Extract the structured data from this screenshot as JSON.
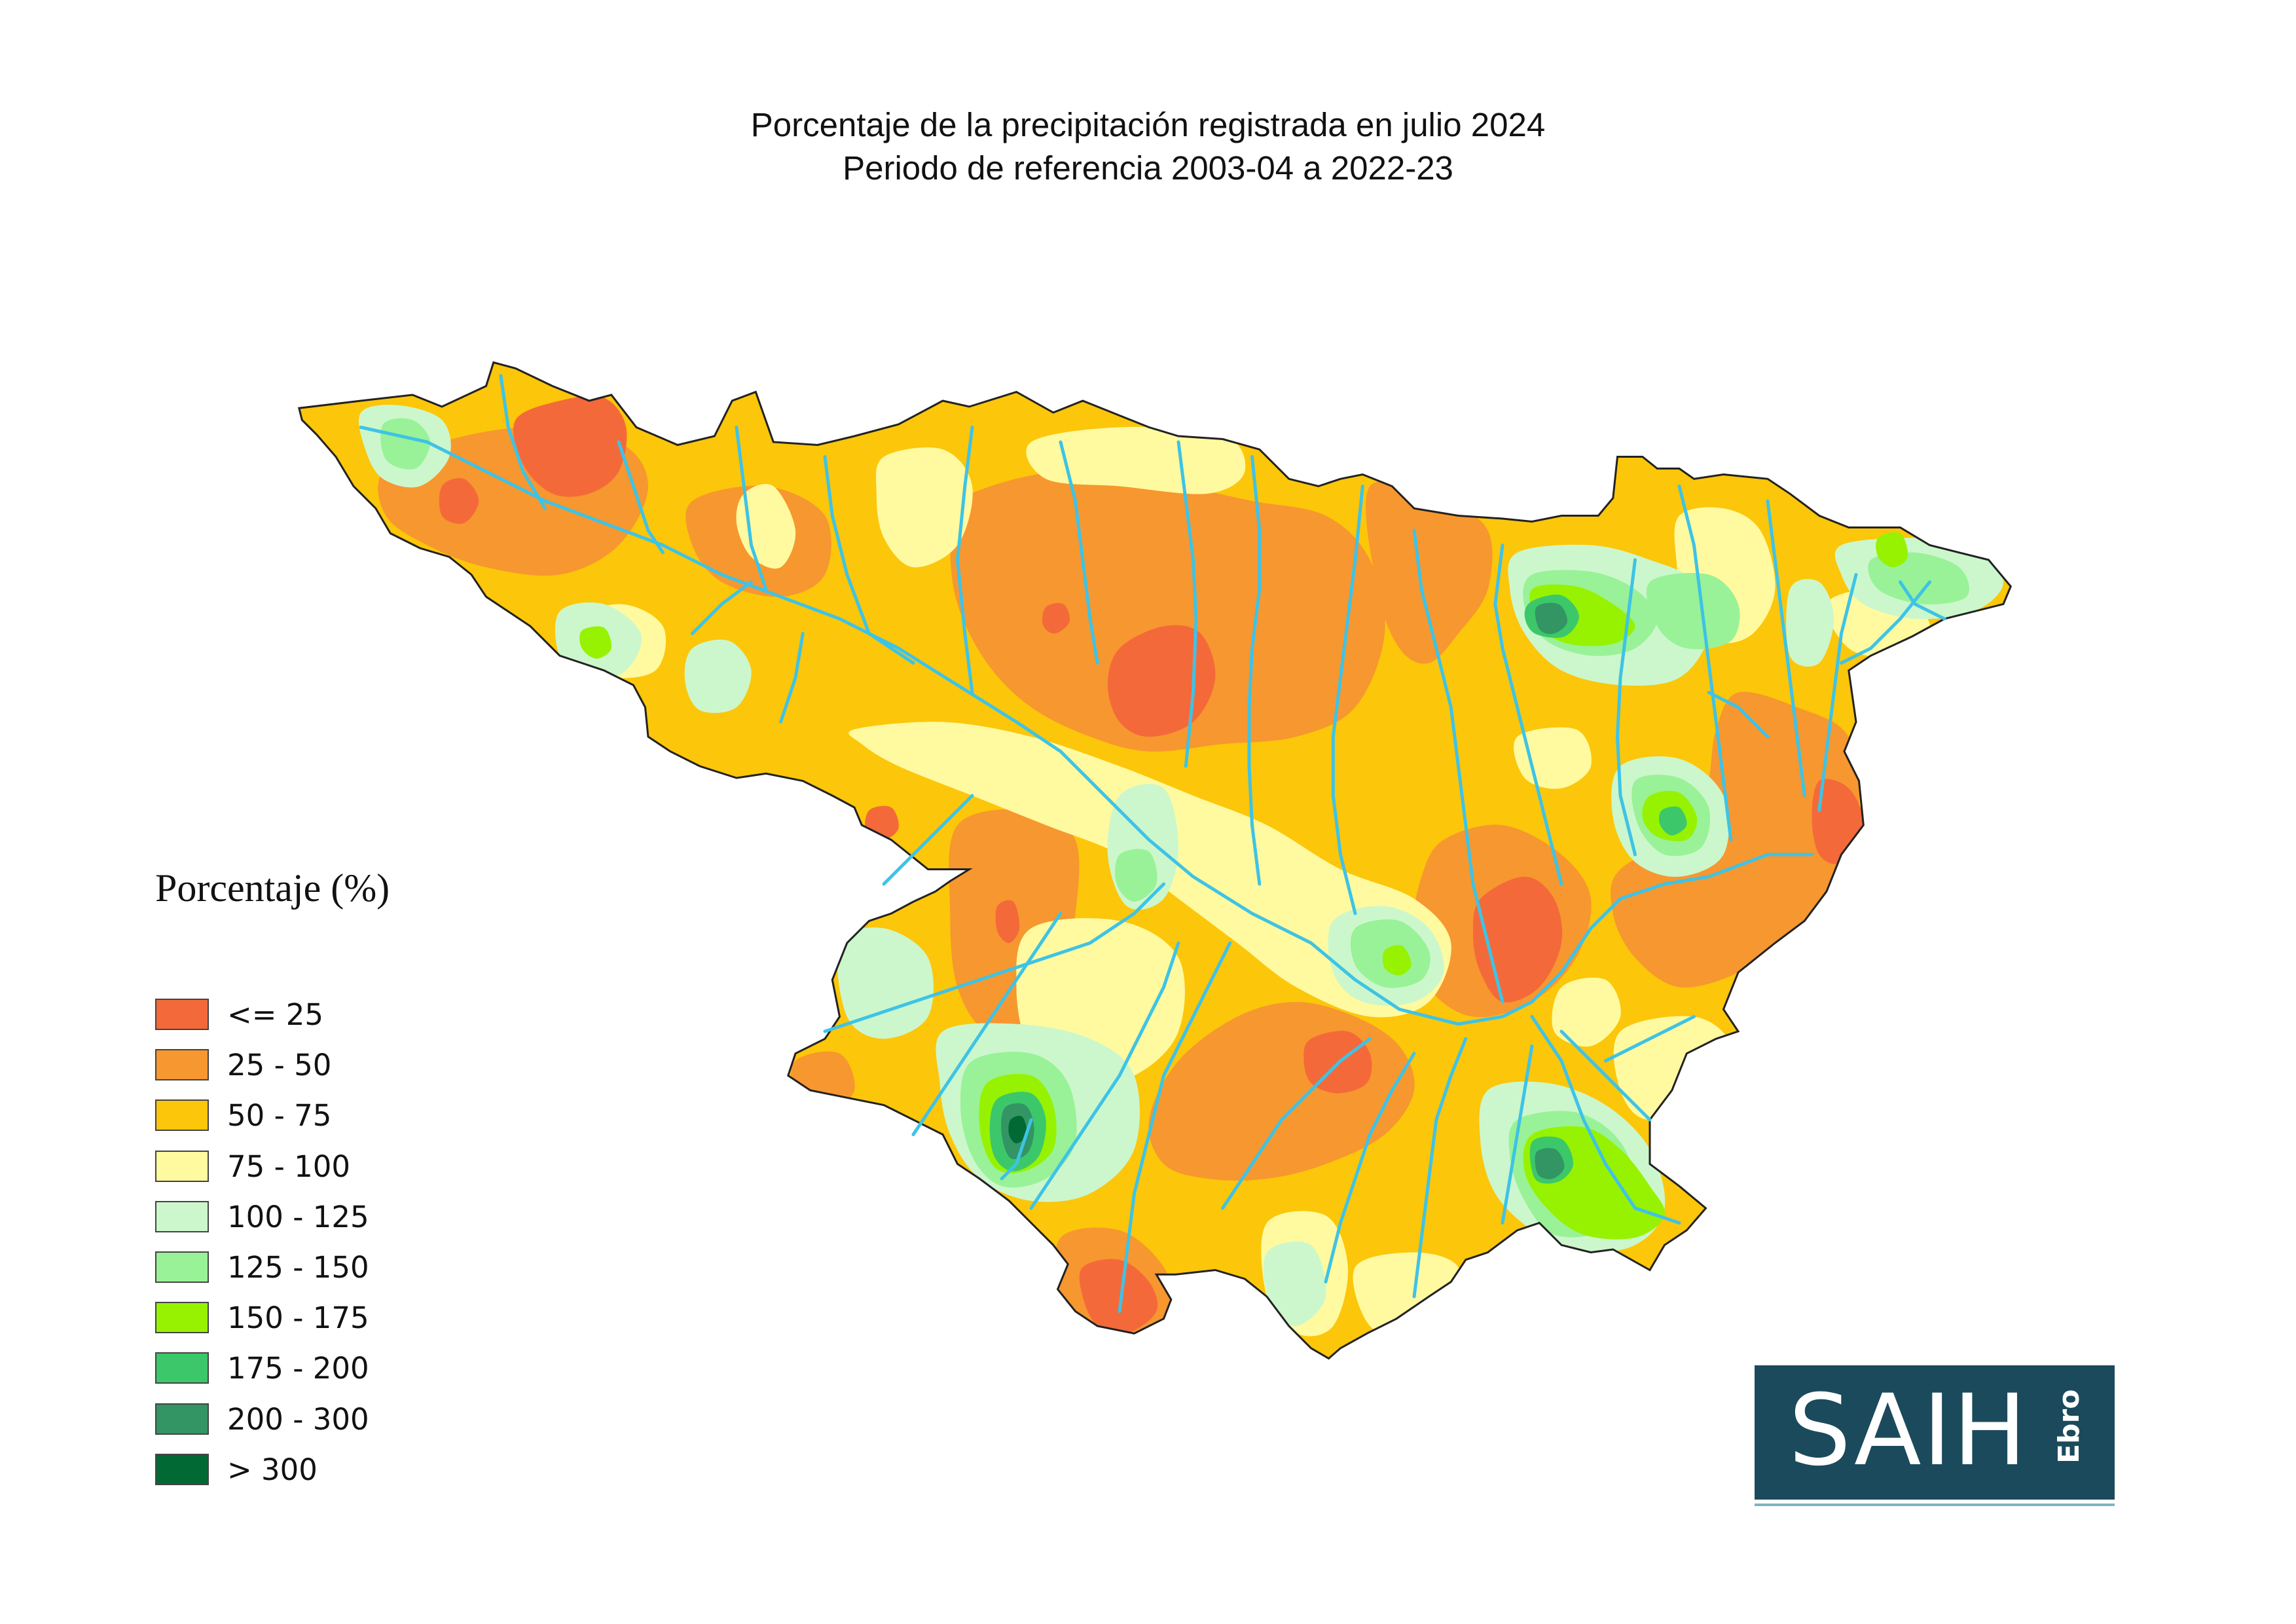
{
  "title": {
    "line1": "Porcentaje de la precipitación registrada en julio 2024",
    "line2": "Periodo de referencia 2003-04 a 2022-23"
  },
  "legend": {
    "title": "Porcentaje (%)",
    "items": [
      {
        "label": "<= 25",
        "color": "#f4693a"
      },
      {
        "label": "25 - 50",
        "color": "#f7972f"
      },
      {
        "label": "50 - 75",
        "color": "#fcc60a"
      },
      {
        "label": "75 - 100",
        "color": "#fffaa0"
      },
      {
        "label": "100 - 125",
        "color": "#ccf7cc"
      },
      {
        "label": "125 - 150",
        "color": "#99f297"
      },
      {
        "label": "150 - 175",
        "color": "#97f202"
      },
      {
        "label": "175 - 200",
        "color": "#3cc86a"
      },
      {
        "label": "200 - 300",
        "color": "#339464"
      },
      {
        "label": "> 300",
        "color": "#006934"
      }
    ]
  },
  "logo": {
    "main": "SAIH",
    "sub": "Ebro",
    "background": "#1b4a5c"
  },
  "map": {
    "base_color": "#fcc60a",
    "river_color": "#3ec3e6",
    "outline_color": "#222222"
  }
}
